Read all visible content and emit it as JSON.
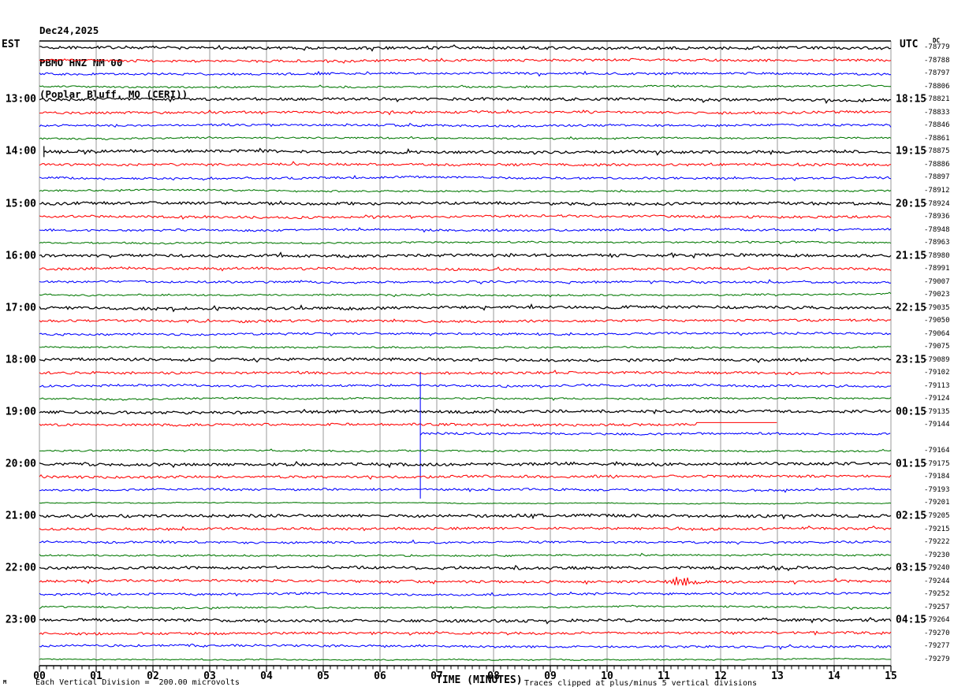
{
  "header": {
    "date": "Dec24,2025",
    "station": "PBMO HNZ NM 00",
    "location": "(Poplar Bluff, MO (CERI))"
  },
  "axes": {
    "left_label": "EST",
    "right_label": "UTC",
    "dc_label": "DC",
    "x_title": "TIME (MINUTES)"
  },
  "footer": {
    "corner_mark": "M",
    "division_note": "Each Vertical Division =  200.00 microvolts",
    "clip_note": "Traces clipped at plus/minus 5 vertical divisions"
  },
  "chart_data": {
    "type": "line",
    "subtype": "helicorder-seismogram",
    "minutes_per_row": 15,
    "row_count": 48,
    "x_ticks": [
      "00",
      "01",
      "02",
      "03",
      "04",
      "05",
      "06",
      "07",
      "08",
      "09",
      "10",
      "11",
      "12",
      "13",
      "14",
      "15"
    ],
    "minor_ticks_per_minute": 8,
    "trace_colors": [
      "#000000",
      "#ff0000",
      "#0000ff",
      "#007700"
    ],
    "grid_color": "#999999",
    "axis_color": "#000000",
    "rows": [
      {
        "est": "",
        "utc": "",
        "dc": "-78779"
      },
      {
        "est": "",
        "utc": "",
        "dc": "-78788"
      },
      {
        "est": "",
        "utc": "",
        "dc": "-78797"
      },
      {
        "est": "",
        "utc": "",
        "dc": "-78806"
      },
      {
        "est": "13:00",
        "utc": "18:15",
        "dc": "-78821"
      },
      {
        "est": "",
        "utc": "",
        "dc": "-78833"
      },
      {
        "est": "",
        "utc": "",
        "dc": "-78846"
      },
      {
        "est": "",
        "utc": "",
        "dc": "-78861"
      },
      {
        "est": "14:00",
        "utc": "19:15",
        "dc": "-78875"
      },
      {
        "est": "",
        "utc": "",
        "dc": "-78886"
      },
      {
        "est": "",
        "utc": "",
        "dc": "-78897"
      },
      {
        "est": "",
        "utc": "",
        "dc": "-78912"
      },
      {
        "est": "15:00",
        "utc": "20:15",
        "dc": "-78924"
      },
      {
        "est": "",
        "utc": "",
        "dc": "-78936"
      },
      {
        "est": "",
        "utc": "",
        "dc": "-78948"
      },
      {
        "est": "",
        "utc": "",
        "dc": "-78963"
      },
      {
        "est": "16:00",
        "utc": "21:15",
        "dc": "-78980"
      },
      {
        "est": "",
        "utc": "",
        "dc": "-78991"
      },
      {
        "est": "",
        "utc": "",
        "dc": "-79007"
      },
      {
        "est": "",
        "utc": "",
        "dc": "-79023"
      },
      {
        "est": "17:00",
        "utc": "22:15",
        "dc": "-79035"
      },
      {
        "est": "",
        "utc": "",
        "dc": "-79050"
      },
      {
        "est": "",
        "utc": "",
        "dc": "-79064"
      },
      {
        "est": "",
        "utc": "",
        "dc": "-79075"
      },
      {
        "est": "18:00",
        "utc": "23:15",
        "dc": "-79089"
      },
      {
        "est": "",
        "utc": "",
        "dc": "-79102"
      },
      {
        "est": "",
        "utc": "",
        "dc": "-79113"
      },
      {
        "est": "",
        "utc": "",
        "dc": "-79124"
      },
      {
        "est": "19:00",
        "utc": "00:15",
        "dc": "-79135"
      },
      {
        "est": "",
        "utc": "",
        "dc": "-79144"
      },
      {
        "est": "",
        "utc": "",
        "dc": ""
      },
      {
        "est": "",
        "utc": "",
        "dc": "-79164"
      },
      {
        "est": "20:00",
        "utc": "01:15",
        "dc": "-79175"
      },
      {
        "est": "",
        "utc": "",
        "dc": "-79184"
      },
      {
        "est": "",
        "utc": "",
        "dc": "-79193"
      },
      {
        "est": "",
        "utc": "",
        "dc": "-79201"
      },
      {
        "est": "21:00",
        "utc": "02:15",
        "dc": "-79205"
      },
      {
        "est": "",
        "utc": "",
        "dc": "-79215"
      },
      {
        "est": "",
        "utc": "",
        "dc": "-79222"
      },
      {
        "est": "",
        "utc": "",
        "dc": "-79230"
      },
      {
        "est": "22:00",
        "utc": "03:15",
        "dc": "-79240"
      },
      {
        "est": "",
        "utc": "",
        "dc": "-79244"
      },
      {
        "est": "",
        "utc": "",
        "dc": "-79252"
      },
      {
        "est": "",
        "utc": "",
        "dc": "-79257"
      },
      {
        "est": "23:00",
        "utc": "04:15",
        "dc": "-79264"
      },
      {
        "est": "",
        "utc": "",
        "dc": "-79270"
      },
      {
        "est": "",
        "utc": "",
        "dc": "-79277"
      },
      {
        "est": "",
        "utc": "",
        "dc": "-79279"
      }
    ],
    "amp_overrides": {
      "35": 0.5,
      "47": 0.7
    },
    "events": [
      {
        "row": 8,
        "type": "start_spike",
        "minute": 0.08,
        "half_height_rows": 0.42
      },
      {
        "row": 29,
        "type": "flatline_then_gap",
        "flat_from_minute": 11.58,
        "flat_to_minute": 12.99,
        "flat_offset_rows": -0.18
      },
      {
        "row": 30,
        "type": "dc_step",
        "minute": 6.71,
        "blank_before": true,
        "vline_top_rows": -5.08,
        "vline_bottom_rows": 4.66,
        "settle_offset_rows": -0.36
      },
      {
        "row": 41,
        "type": "event_burst",
        "minute": 11.28,
        "peak_amp_rows": 0.36
      }
    ]
  }
}
